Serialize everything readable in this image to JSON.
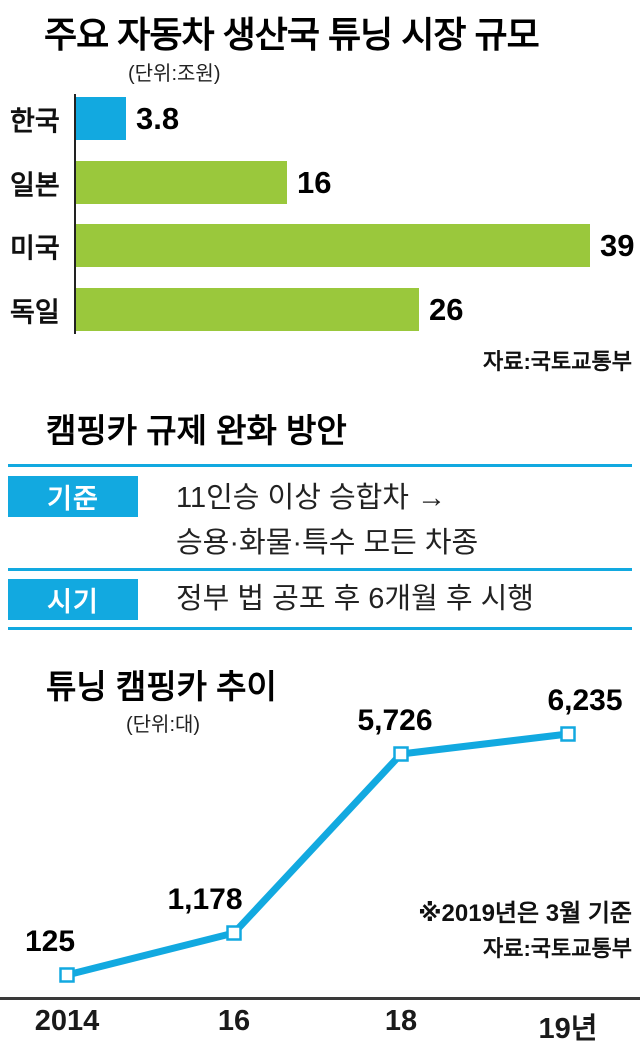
{
  "colors": {
    "accent_cyan": "#12a9e0",
    "bar_green": "#9ac83c",
    "axis_dark": "#3a3a3a"
  },
  "bar_chart": {
    "title": "주요 자동차 생산국 튜닝 시장 규모",
    "unit": "(단위:조원)",
    "source": "자료:국토교통부",
    "scale_max": 39,
    "bars": [
      {
        "label": "한국",
        "value": 3.8,
        "display": "3.8",
        "color": "#12a9e0"
      },
      {
        "label": "일본",
        "value": 16,
        "display": "16",
        "color": "#9ac83c"
      },
      {
        "label": "미국",
        "value": 39,
        "display": "39",
        "color": "#9ac83c"
      },
      {
        "label": "독일",
        "value": 26,
        "display": "26",
        "color": "#9ac83c"
      }
    ]
  },
  "table": {
    "title": "캠핑카 규제 완화 방안",
    "rows": [
      {
        "label": "기준",
        "lines": [
          "11인승 이상 승합차 →",
          "승용·화물·특수 모든 차종"
        ]
      },
      {
        "label": "시기",
        "lines": [
          "정부 법 공포 후 6개월 후 시행"
        ]
      }
    ]
  },
  "line_chart": {
    "title": "튜닝 캠핑카 추이",
    "unit": "(단위:대)",
    "note": "※2019년은 3월 기준",
    "source": "자료:국토교통부",
    "points": [
      {
        "x_label": "2014",
        "value": 125,
        "display": "125"
      },
      {
        "x_label": "16",
        "value": 1178,
        "display": "1,178"
      },
      {
        "x_label": "18",
        "value": 5726,
        "display": "5,726"
      },
      {
        "x_label": "19년",
        "value": 6235,
        "display": "6,235"
      }
    ]
  },
  "chart_data": [
    {
      "type": "bar",
      "orientation": "horizontal",
      "title": "주요 자동차 생산국 튜닝 시장 규모",
      "unit": "조원",
      "categories": [
        "한국",
        "일본",
        "미국",
        "독일"
      ],
      "values": [
        3.8,
        16,
        39,
        26
      ],
      "xlim": [
        0,
        40
      ],
      "bar_colors": [
        "#12a9e0",
        "#9ac83c",
        "#9ac83c",
        "#9ac83c"
      ],
      "source": "자료:국토교통부"
    },
    {
      "type": "table",
      "title": "캠핑카 규제 완화 방안",
      "rows": [
        [
          "기준",
          "11인승 이상 승합차 → 승용·화물·특수 모든 차종"
        ],
        [
          "시기",
          "정부 법 공포 후 6개월 후 시행"
        ]
      ]
    },
    {
      "type": "line",
      "title": "튜닝 캠핑카 추이",
      "unit": "대",
      "x": [
        "2014",
        "16",
        "18",
        "19년"
      ],
      "values": [
        125,
        1178,
        5726,
        6235
      ],
      "ylim": [
        0,
        6800
      ],
      "line_color": "#12a9e0",
      "marker": "square",
      "note": "※2019년은 3월 기준",
      "source": "자료:국토교통부"
    }
  ]
}
